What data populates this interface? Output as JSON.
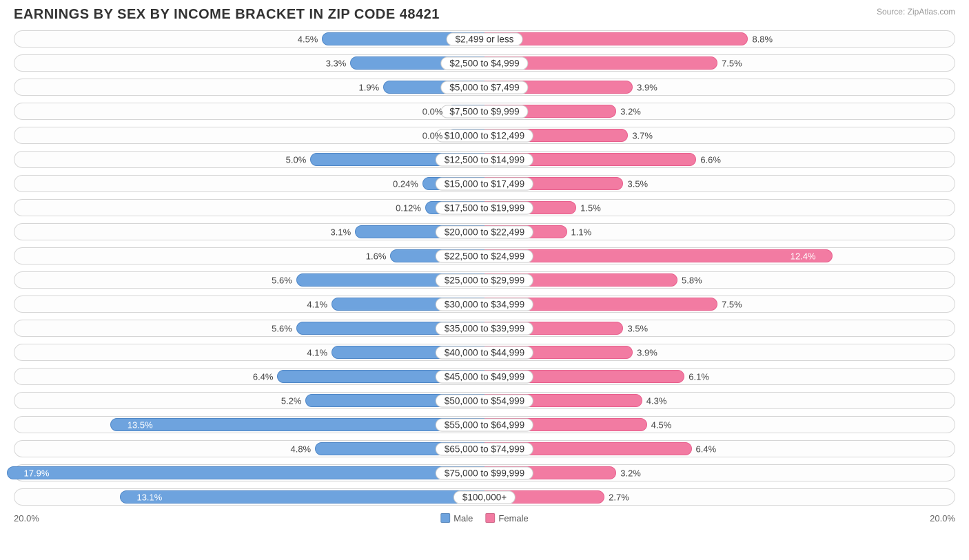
{
  "title": "EARNINGS BY SEX BY INCOME BRACKET IN ZIP CODE 48421",
  "source": "Source: ZipAtlas.com",
  "axis": {
    "left": "20.0%",
    "right": "20.0%",
    "max_pct": 20.0
  },
  "colors": {
    "male_fill": "#6ea3de",
    "male_stroke": "#4f87c7",
    "female_fill": "#f27ba2",
    "female_stroke": "#e85f8d",
    "track_border": "#d6d6d6",
    "label_border": "#cccccc",
    "bg": "#ffffff"
  },
  "legend": {
    "male": "Male",
    "female": "Female"
  },
  "rows": [
    {
      "label": "$2,499 or less",
      "male": 4.5,
      "male_txt": "4.5%",
      "female": 8.8,
      "female_txt": "8.8%"
    },
    {
      "label": "$2,500 to $4,999",
      "male": 3.3,
      "male_txt": "3.3%",
      "female": 7.5,
      "female_txt": "7.5%"
    },
    {
      "label": "$5,000 to $7,499",
      "male": 1.9,
      "male_txt": "1.9%",
      "female": 3.9,
      "female_txt": "3.9%"
    },
    {
      "label": "$7,500 to $9,999",
      "male": 0.0,
      "male_txt": "0.0%",
      "female": 3.2,
      "female_txt": "3.2%"
    },
    {
      "label": "$10,000 to $12,499",
      "male": 0.0,
      "male_txt": "0.0%",
      "female": 3.7,
      "female_txt": "3.7%"
    },
    {
      "label": "$12,500 to $14,999",
      "male": 5.0,
      "male_txt": "5.0%",
      "female": 6.6,
      "female_txt": "6.6%"
    },
    {
      "label": "$15,000 to $17,499",
      "male": 0.24,
      "male_txt": "0.24%",
      "female": 3.5,
      "female_txt": "3.5%"
    },
    {
      "label": "$17,500 to $19,999",
      "male": 0.12,
      "male_txt": "0.12%",
      "female": 1.5,
      "female_txt": "1.5%"
    },
    {
      "label": "$20,000 to $22,499",
      "male": 3.1,
      "male_txt": "3.1%",
      "female": 1.1,
      "female_txt": "1.1%"
    },
    {
      "label": "$22,500 to $24,999",
      "male": 1.6,
      "male_txt": "1.6%",
      "female": 12.4,
      "female_txt": "12.4%",
      "female_inside": true
    },
    {
      "label": "$25,000 to $29,999",
      "male": 5.6,
      "male_txt": "5.6%",
      "female": 5.8,
      "female_txt": "5.8%"
    },
    {
      "label": "$30,000 to $34,999",
      "male": 4.1,
      "male_txt": "4.1%",
      "female": 7.5,
      "female_txt": "7.5%"
    },
    {
      "label": "$35,000 to $39,999",
      "male": 5.6,
      "male_txt": "5.6%",
      "female": 3.5,
      "female_txt": "3.5%"
    },
    {
      "label": "$40,000 to $44,999",
      "male": 4.1,
      "male_txt": "4.1%",
      "female": 3.9,
      "female_txt": "3.9%"
    },
    {
      "label": "$45,000 to $49,999",
      "male": 6.4,
      "male_txt": "6.4%",
      "female": 6.1,
      "female_txt": "6.1%"
    },
    {
      "label": "$50,000 to $54,999",
      "male": 5.2,
      "male_txt": "5.2%",
      "female": 4.3,
      "female_txt": "4.3%"
    },
    {
      "label": "$55,000 to $64,999",
      "male": 13.5,
      "male_txt": "13.5%",
      "male_inside": true,
      "female": 4.5,
      "female_txt": "4.5%"
    },
    {
      "label": "$65,000 to $74,999",
      "male": 4.8,
      "male_txt": "4.8%",
      "female": 6.4,
      "female_txt": "6.4%"
    },
    {
      "label": "$75,000 to $99,999",
      "male": 17.9,
      "male_txt": "17.9%",
      "male_inside": true,
      "female": 3.2,
      "female_txt": "3.2%"
    },
    {
      "label": "$100,000+",
      "male": 13.1,
      "male_txt": "13.1%",
      "male_inside": true,
      "female": 2.7,
      "female_txt": "2.7%"
    }
  ]
}
